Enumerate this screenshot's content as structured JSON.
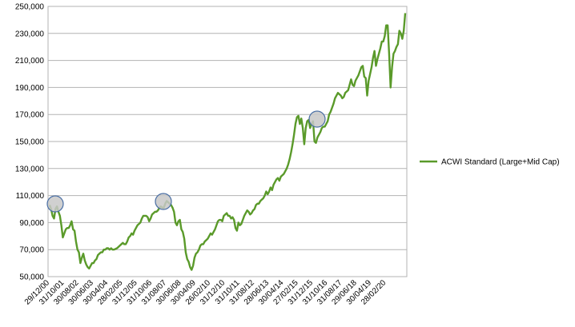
{
  "chart_data": {
    "type": "line",
    "categories": [
      "29/12/00",
      null,
      null,
      null,
      null,
      null,
      null,
      null,
      null,
      null,
      "31/10/01",
      null,
      null,
      null,
      null,
      null,
      null,
      null,
      null,
      null,
      "30/08/02",
      null,
      null,
      null,
      null,
      null,
      null,
      null,
      null,
      null,
      "30/06/03",
      null,
      null,
      null,
      null,
      null,
      null,
      null,
      null,
      null,
      "30/04/04",
      null,
      null,
      null,
      null,
      null,
      null,
      null,
      null,
      null,
      "28/02/05",
      null,
      null,
      null,
      null,
      null,
      null,
      null,
      null,
      null,
      "31/12/05",
      null,
      null,
      null,
      null,
      null,
      null,
      null,
      null,
      null,
      "31/10/06",
      null,
      null,
      null,
      null,
      null,
      null,
      null,
      null,
      null,
      "31/08/07",
      null,
      null,
      null,
      null,
      null,
      null,
      null,
      null,
      null,
      "30/06/08",
      null,
      null,
      null,
      null,
      null,
      null,
      null,
      null,
      null,
      "30/04/09",
      null,
      null,
      null,
      null,
      null,
      null,
      null,
      null,
      null,
      "26/02/10",
      null,
      null,
      null,
      null,
      null,
      null,
      null,
      null,
      null,
      "31/12/10",
      null,
      null,
      null,
      null,
      null,
      null,
      null,
      null,
      null,
      "31/10/11",
      null,
      null,
      null,
      null,
      null,
      null,
      null,
      null,
      null,
      "31/08/12",
      null,
      null,
      null,
      null,
      null,
      null,
      null,
      null,
      null,
      "28/06/13",
      null,
      null,
      null,
      null,
      null,
      null,
      null,
      null,
      null,
      "30/04/14",
      null,
      null,
      null,
      null,
      null,
      null,
      null,
      null,
      null,
      "27/02/15",
      null,
      null,
      null,
      null,
      null,
      null,
      null,
      null,
      null,
      "31/12/15",
      null,
      null,
      null,
      null,
      null,
      null,
      null,
      null,
      null,
      "31/10/16",
      null,
      null,
      null,
      null,
      null,
      null,
      null,
      null,
      null,
      "31/08/17",
      null,
      null,
      null,
      null,
      null,
      null,
      null,
      null,
      null,
      "29/06/18",
      null,
      null,
      null,
      null,
      null,
      null,
      null,
      null,
      null,
      "30/04/19",
      null,
      null,
      null,
      null,
      null,
      null,
      null,
      null,
      null,
      "28/02/20",
      null,
      null,
      null,
      null,
      null,
      null,
      null,
      null,
      null,
      null,
      null,
      null,
      null
    ],
    "series": [
      {
        "name": "ACWI Standard (Large+Mid Cap)",
        "color": "#5a9a2a",
        "values": [
          103000,
          100000,
          95000,
          93000,
          100000,
          102000,
          98000,
          95000,
          88000,
          79000,
          82000,
          85000,
          86000,
          86000,
          88000,
          91000,
          85000,
          84000,
          76000,
          70000,
          68000,
          60000,
          64000,
          67000,
          62000,
          59000,
          57000,
          56000,
          58000,
          60000,
          60000,
          62000,
          63000,
          66000,
          67000,
          68000,
          68000,
          70000,
          70000,
          71000,
          71000,
          70000,
          71000,
          70000,
          70000,
          70500,
          71000,
          72000,
          73000,
          74000,
          75000,
          74000,
          74000,
          76000,
          79000,
          80000,
          82000,
          81000,
          84000,
          86000,
          88000,
          89000,
          90000,
          93000,
          95000,
          95000,
          95000,
          94000,
          91000,
          93000,
          96000,
          97000,
          98000,
          98000,
          99000,
          101000,
          102000,
          101000,
          101000,
          104000,
          106000,
          105000,
          104000,
          103000,
          101000,
          98000,
          90000,
          88000,
          91000,
          92000,
          85000,
          83000,
          78000,
          68000,
          63000,
          61000,
          57000,
          55000,
          58000,
          64000,
          67000,
          68000,
          70000,
          73000,
          74000,
          74000,
          76000,
          77000,
          78000,
          80000,
          82000,
          81000,
          83000,
          85000,
          88000,
          91000,
          92000,
          92000,
          91000,
          95000,
          96000,
          97000,
          95000,
          95000,
          93000,
          94000,
          92000,
          86000,
          84000,
          90000,
          88000,
          89000,
          92000,
          95000,
          97000,
          99000,
          98000,
          96000,
          97000,
          99000,
          100000,
          103000,
          104000,
          104000,
          106000,
          107000,
          108000,
          110000,
          113000,
          111000,
          113000,
          116000,
          114000,
          118000,
          120000,
          122000,
          123000,
          121000,
          124000,
          125000,
          126000,
          128000,
          130000,
          133000,
          137000,
          142000,
          148000,
          155000,
          163000,
          168000,
          169000,
          163000,
          167000,
          160000,
          148000,
          160000,
          165000,
          166000,
          160000,
          163000,
          165000,
          150000,
          149000,
          153000,
          155000,
          157000,
          160000,
          161000,
          161000,
          163000,
          165000,
          170000,
          172000,
          175000,
          178000,
          182000,
          184000,
          186000,
          185000,
          184000,
          182000,
          183000,
          186000,
          187000,
          188000,
          192000,
          196000,
          192000,
          191000,
          195000,
          197000,
          199000,
          202000,
          205000,
          206000,
          198000,
          197000,
          184000,
          195000,
          200000,
          205000,
          212000,
          217000,
          206000,
          211000,
          215000,
          219000,
          224000,
          224000,
          228000,
          236000,
          236000,
          215000,
          190000,
          205000,
          215000,
          217000,
          220000,
          222000,
          232000,
          230000,
          226000,
          232000,
          245000
        ]
      }
    ],
    "ylim": [
      50000,
      250000
    ],
    "yticks": [
      {
        "value": 50000,
        "label": "50,000"
      },
      {
        "value": 70000,
        "label": "70,000"
      },
      {
        "value": 90000,
        "label": "90,000"
      },
      {
        "value": 110000,
        "label": "110,000"
      },
      {
        "value": 130000,
        "label": "130,000"
      },
      {
        "value": 150000,
        "label": "150,000"
      },
      {
        "value": 170000,
        "label": "170,000"
      },
      {
        "value": 190000,
        "label": "190,000"
      },
      {
        "value": 210000,
        "label": "210,000"
      },
      {
        "value": 230000,
        "label": "230,000"
      },
      {
        "value": 250000,
        "label": "250,000"
      }
    ],
    "grid": true,
    "legend": "right"
  }
}
